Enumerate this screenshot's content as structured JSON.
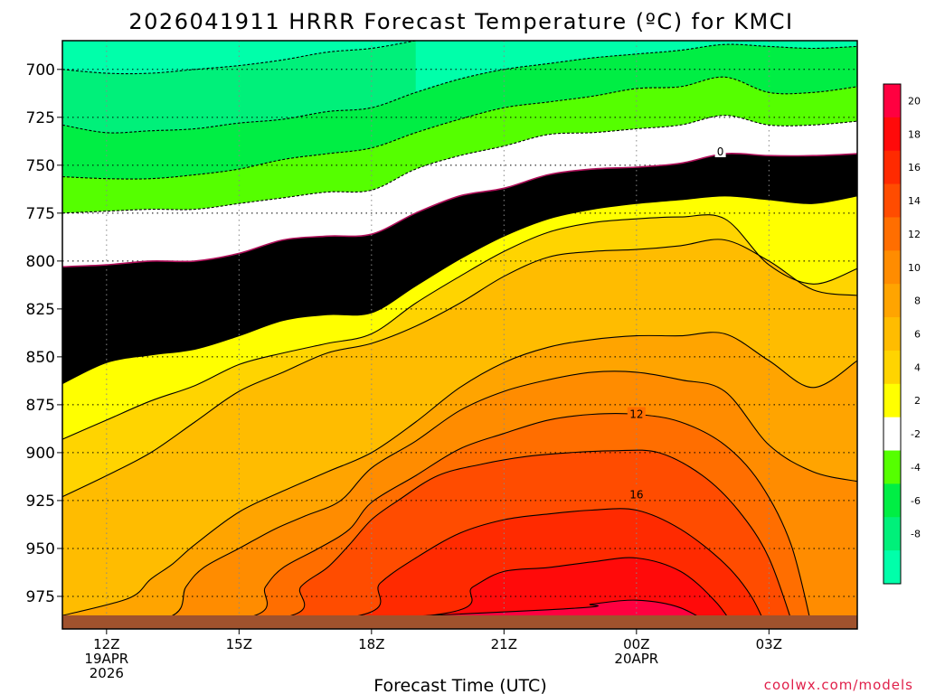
{
  "title": "2026041911 HRRR Forecast Temperature (ºC) for KMCI",
  "credit": "coolwx.com/models",
  "chart_data": {
    "type": "heatmap",
    "title": "2026041911 HRRR Forecast Temperature (ºC) for KMCI",
    "xlabel": "Forecast Time (UTC)",
    "ylabel": "",
    "x_ticks": [
      {
        "hour": 12,
        "lines": [
          "12Z",
          "19APR",
          "2026"
        ]
      },
      {
        "hour": 15,
        "lines": [
          "15Z"
        ]
      },
      {
        "hour": 18,
        "lines": [
          "18Z"
        ]
      },
      {
        "hour": 21,
        "lines": [
          "21Z"
        ]
      },
      {
        "hour": 24,
        "lines": [
          "00Z",
          "20APR"
        ]
      },
      {
        "hour": 27,
        "lines": [
          "03Z"
        ]
      }
    ],
    "xlim_hours": [
      11,
      29
    ],
    "y_ticks": [
      700,
      725,
      750,
      775,
      800,
      825,
      850,
      875,
      900,
      925,
      950,
      975
    ],
    "ylim_hPa": [
      685,
      992
    ],
    "grid": true,
    "contour_labels": [
      {
        "text": "0",
        "hour": 25.9,
        "p": 743
      },
      {
        "text": "12",
        "hour": 24.0,
        "p": 880
      },
      {
        "text": "16",
        "hour": 24.0,
        "p": 922
      }
    ],
    "colorbar": {
      "ticks": [
        20,
        18,
        16,
        14,
        12,
        10,
        8,
        6,
        4,
        2,
        -2,
        -4,
        -6,
        -8
      ],
      "bands": [
        {
          "lo": 20,
          "hi": 22,
          "color": "#ff0040"
        },
        {
          "lo": 18,
          "hi": 20,
          "color": "#ff0a0a"
        },
        {
          "lo": 16,
          "hi": 18,
          "color": "#ff2a00"
        },
        {
          "lo": 14,
          "hi": 16,
          "color": "#ff4c00"
        },
        {
          "lo": 12,
          "hi": 14,
          "color": "#ff6e00"
        },
        {
          "lo": 10,
          "hi": 12,
          "color": "#ff8c00"
        },
        {
          "lo": 8,
          "hi": 10,
          "color": "#ffa400"
        },
        {
          "lo": 6,
          "hi": 8,
          "color": "#ffbc00"
        },
        {
          "lo": 4,
          "hi": 6,
          "color": "#ffd400"
        },
        {
          "lo": 2,
          "hi": 4,
          "color": "#ffff00"
        },
        {
          "lo": -2,
          "hi": 2,
          "color": "#ffffff"
        },
        {
          "lo": -4,
          "hi": -2,
          "color": "#55ff00"
        },
        {
          "lo": -6,
          "hi": -4,
          "color": "#00ee44"
        },
        {
          "lo": -8,
          "hi": -6,
          "color": "#00f07a"
        },
        {
          "lo": -10,
          "hi": -8,
          "color": "#00ffaa"
        }
      ]
    },
    "temperature_contours": [
      {
        "level": 20,
        "points": [
          [
            11,
            994
          ],
          [
            22,
            982
          ],
          [
            23,
            979
          ],
          [
            24,
            977
          ],
          [
            25,
            981
          ],
          [
            26,
            994
          ]
        ]
      },
      {
        "level": 18,
        "points": [
          [
            11,
            994
          ],
          [
            19.3,
            985
          ],
          [
            20.3,
            970
          ],
          [
            21,
            962
          ],
          [
            22,
            960
          ],
          [
            23,
            957
          ],
          [
            24,
            955
          ],
          [
            25,
            962
          ],
          [
            25.8,
            978
          ],
          [
            26.3,
            994
          ]
        ]
      },
      {
        "level": 16,
        "points": [
          [
            11,
            994
          ],
          [
            17.5,
            986
          ],
          [
            18.2,
            968
          ],
          [
            19,
            955
          ],
          [
            20,
            942
          ],
          [
            21,
            935
          ],
          [
            22,
            932
          ],
          [
            23,
            930
          ],
          [
            24,
            930
          ],
          [
            25,
            940
          ],
          [
            26,
            958
          ],
          [
            26.6,
            975
          ],
          [
            27,
            994
          ]
        ]
      },
      {
        "level": 14,
        "points": [
          [
            11,
            994
          ],
          [
            16,
            986
          ],
          [
            16.4,
            970
          ],
          [
            17,
            960
          ],
          [
            17.5,
            948
          ],
          [
            18,
            935
          ],
          [
            18.6,
            925
          ],
          [
            19.5,
            912
          ],
          [
            20.5,
            906
          ],
          [
            21.5,
            902
          ],
          [
            22.5,
            900
          ],
          [
            23.5,
            899
          ],
          [
            24.5,
            900
          ],
          [
            25.5,
            912
          ],
          [
            26.3,
            930
          ],
          [
            27,
            955
          ],
          [
            27.6,
            994
          ]
        ]
      },
      {
        "level": 12,
        "points": [
          [
            11,
            994
          ],
          [
            15.2,
            986
          ],
          [
            15.6,
            970
          ],
          [
            16,
            960
          ],
          [
            16.8,
            950
          ],
          [
            17.5,
            940
          ],
          [
            18,
            926
          ],
          [
            19,
            912
          ],
          [
            20,
            898
          ],
          [
            21,
            890
          ],
          [
            22,
            883
          ],
          [
            23,
            880
          ],
          [
            24,
            880
          ],
          [
            25,
            884
          ],
          [
            26,
            896
          ],
          [
            26.8,
            916
          ],
          [
            27.5,
            948
          ],
          [
            28,
            994
          ]
        ]
      },
      {
        "level": 10,
        "points": [
          [
            11,
            994
          ],
          [
            13.4,
            986
          ],
          [
            13.8,
            970
          ],
          [
            14.2,
            960
          ],
          [
            15,
            950
          ],
          [
            15.8,
            940
          ],
          [
            16.5,
            933
          ],
          [
            17.3,
            925
          ],
          [
            18,
            908
          ],
          [
            19,
            894
          ],
          [
            20,
            878
          ],
          [
            21,
            868
          ],
          [
            22,
            862
          ],
          [
            23,
            858
          ],
          [
            24,
            858
          ],
          [
            25,
            862
          ],
          [
            26,
            868
          ],
          [
            27,
            896
          ],
          [
            28,
            910
          ],
          [
            29,
            915
          ]
        ]
      },
      {
        "level": 8,
        "points": [
          [
            11,
            985
          ],
          [
            12.5,
            976
          ],
          [
            13,
            966
          ],
          [
            13.5,
            958
          ],
          [
            14,
            948
          ],
          [
            15,
            931
          ],
          [
            16,
            920
          ],
          [
            17,
            910
          ],
          [
            18,
            900
          ],
          [
            19,
            884
          ],
          [
            20,
            866
          ],
          [
            21,
            853
          ],
          [
            22,
            845
          ],
          [
            23,
            841
          ],
          [
            24,
            839
          ],
          [
            25,
            839
          ],
          [
            26,
            838
          ],
          [
            27,
            852
          ],
          [
            28,
            866
          ],
          [
            29,
            852
          ]
        ]
      },
      {
        "level": 6,
        "points": [
          [
            11,
            923
          ],
          [
            12,
            912
          ],
          [
            13,
            900
          ],
          [
            14,
            884
          ],
          [
            15,
            868
          ],
          [
            16,
            858
          ],
          [
            17,
            848
          ],
          [
            18,
            843
          ],
          [
            19,
            834
          ],
          [
            20,
            822
          ],
          [
            21,
            808
          ],
          [
            22,
            798
          ],
          [
            23,
            795
          ],
          [
            24,
            794
          ],
          [
            25,
            792
          ],
          [
            26,
            789
          ],
          [
            27,
            800
          ],
          [
            28,
            815
          ],
          [
            29,
            818
          ]
        ]
      },
      {
        "level": 4,
        "points": [
          [
            11,
            893
          ],
          [
            12,
            883
          ],
          [
            13,
            873
          ],
          [
            14,
            865
          ],
          [
            15,
            854
          ],
          [
            16,
            848
          ],
          [
            17,
            843
          ],
          [
            18,
            838
          ],
          [
            19,
            822
          ],
          [
            20,
            808
          ],
          [
            21,
            795
          ],
          [
            22,
            785
          ],
          [
            23,
            780
          ],
          [
            24,
            778
          ],
          [
            25,
            777
          ],
          [
            26,
            778
          ],
          [
            27,
            802
          ],
          [
            28,
            812
          ],
          [
            29,
            804
          ]
        ]
      },
      {
        "level": 2,
        "points": [
          [
            11,
            864
          ],
          [
            12,
            853
          ],
          [
            13,
            849
          ],
          [
            14,
            846
          ],
          [
            15,
            839
          ],
          [
            16,
            831
          ],
          [
            17,
            828
          ],
          [
            18,
            827
          ],
          [
            19,
            813
          ],
          [
            20,
            799
          ],
          [
            21,
            787
          ],
          [
            22,
            778
          ],
          [
            23,
            773
          ],
          [
            24,
            770
          ],
          [
            25,
            768
          ],
          [
            26,
            766
          ],
          [
            27,
            768
          ],
          [
            28,
            770
          ],
          [
            29,
            766
          ]
        ]
      },
      {
        "level": 0,
        "points": [
          [
            11,
            803
          ],
          [
            12,
            802
          ],
          [
            13,
            800
          ],
          [
            14,
            800
          ],
          [
            15,
            796
          ],
          [
            16,
            789
          ],
          [
            17,
            787
          ],
          [
            18,
            786
          ],
          [
            19,
            775
          ],
          [
            20,
            766
          ],
          [
            21,
            762
          ],
          [
            22,
            755
          ],
          [
            23,
            752
          ],
          [
            24,
            751
          ],
          [
            25,
            749
          ],
          [
            26,
            744
          ],
          [
            27,
            745
          ],
          [
            28,
            745
          ],
          [
            29,
            744
          ]
        ]
      },
      {
        "level": -2,
        "points": [
          [
            11,
            775
          ],
          [
            12,
            774
          ],
          [
            13,
            773
          ],
          [
            14,
            773
          ],
          [
            15,
            770
          ],
          [
            16,
            767
          ],
          [
            17,
            764
          ],
          [
            18,
            763
          ],
          [
            19,
            752
          ],
          [
            20,
            745
          ],
          [
            21,
            740
          ],
          [
            22,
            734
          ],
          [
            23,
            733
          ],
          [
            24,
            731
          ],
          [
            25,
            729
          ],
          [
            26,
            724
          ],
          [
            27,
            729
          ],
          [
            28,
            729
          ],
          [
            29,
            727
          ]
        ]
      },
      {
        "level": -4,
        "points": [
          [
            11,
            756
          ],
          [
            12,
            757
          ],
          [
            13,
            757
          ],
          [
            14,
            755
          ],
          [
            15,
            752
          ],
          [
            16,
            747
          ],
          [
            17,
            744
          ],
          [
            18,
            741
          ],
          [
            19,
            733
          ],
          [
            20,
            726
          ],
          [
            21,
            720
          ],
          [
            22,
            717
          ],
          [
            23,
            714
          ],
          [
            24,
            710
          ],
          [
            25,
            709
          ],
          [
            26,
            704
          ],
          [
            27,
            712
          ],
          [
            28,
            712
          ],
          [
            29,
            709
          ]
        ]
      },
      {
        "level": -6,
        "points": [
          [
            11,
            729
          ],
          [
            12,
            733
          ],
          [
            13,
            732
          ],
          [
            14,
            731
          ],
          [
            15,
            728
          ],
          [
            16,
            726
          ],
          [
            17,
            722
          ],
          [
            18,
            720
          ],
          [
            19,
            712
          ],
          [
            20,
            705
          ],
          [
            21,
            700
          ],
          [
            22,
            697
          ],
          [
            23,
            694
          ],
          [
            24,
            692
          ],
          [
            25,
            690
          ],
          [
            26,
            687
          ],
          [
            27,
            688
          ],
          [
            28,
            689
          ],
          [
            29,
            688
          ]
        ]
      },
      {
        "level": -8,
        "points": [
          [
            11,
            700
          ],
          [
            12,
            702
          ],
          [
            13,
            702
          ],
          [
            14,
            700
          ],
          [
            15,
            698
          ],
          [
            16,
            695
          ],
          [
            17,
            691
          ],
          [
            18,
            689
          ],
          [
            19,
            685
          ]
        ]
      }
    ]
  }
}
